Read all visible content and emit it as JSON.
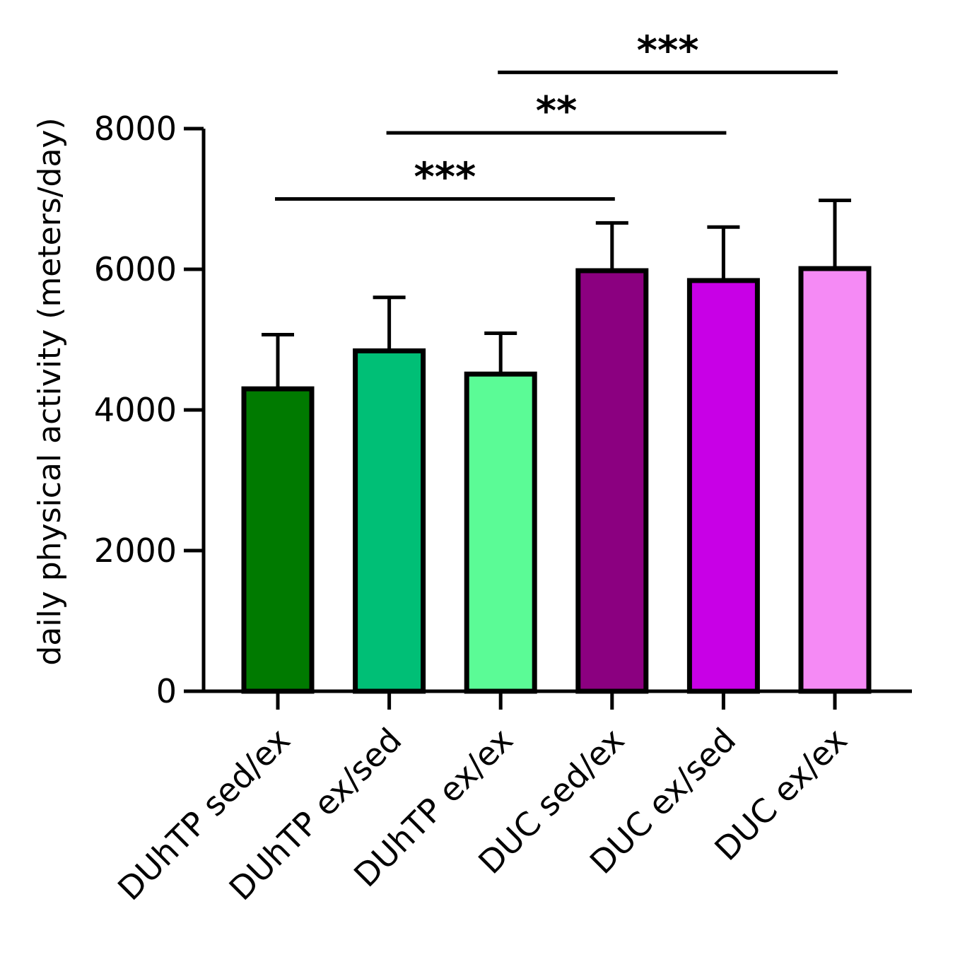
{
  "chart_data": {
    "type": "bar",
    "title": "",
    "xlabel": "",
    "ylabel": "daily physical activity (meters/day)",
    "ylim": [
      0,
      8000
    ],
    "yticks": [
      0,
      2000,
      4000,
      6000,
      8000
    ],
    "tick_labels": [
      "0",
      "2000",
      "4000",
      "6000",
      "8000"
    ],
    "categories": [
      "DUhTP sed/ex",
      "DUhTP ex/sed",
      "DUhTP ex/ex",
      "DUC sed/ex",
      "DUC ex/sed",
      "DUC ex/ex"
    ],
    "values": [
      4300,
      4840,
      4510,
      5980,
      5840,
      6010
    ],
    "error_upper": [
      5070,
      5600,
      5090,
      6660,
      6600,
      6980
    ],
    "colors": [
      "#007a00",
      "#00bf76",
      "#5bfb96",
      "#8b0080",
      "#c800e6",
      "#f58af5"
    ],
    "significance": [
      {
        "from": 0,
        "to": 3,
        "y": 7000,
        "label": "***"
      },
      {
        "from": 1,
        "to": 4,
        "y": 7940,
        "label": "**"
      },
      {
        "from": 2,
        "to": 5,
        "y": 8800,
        "label": "***"
      }
    ],
    "grid": false,
    "legend": "none"
  }
}
